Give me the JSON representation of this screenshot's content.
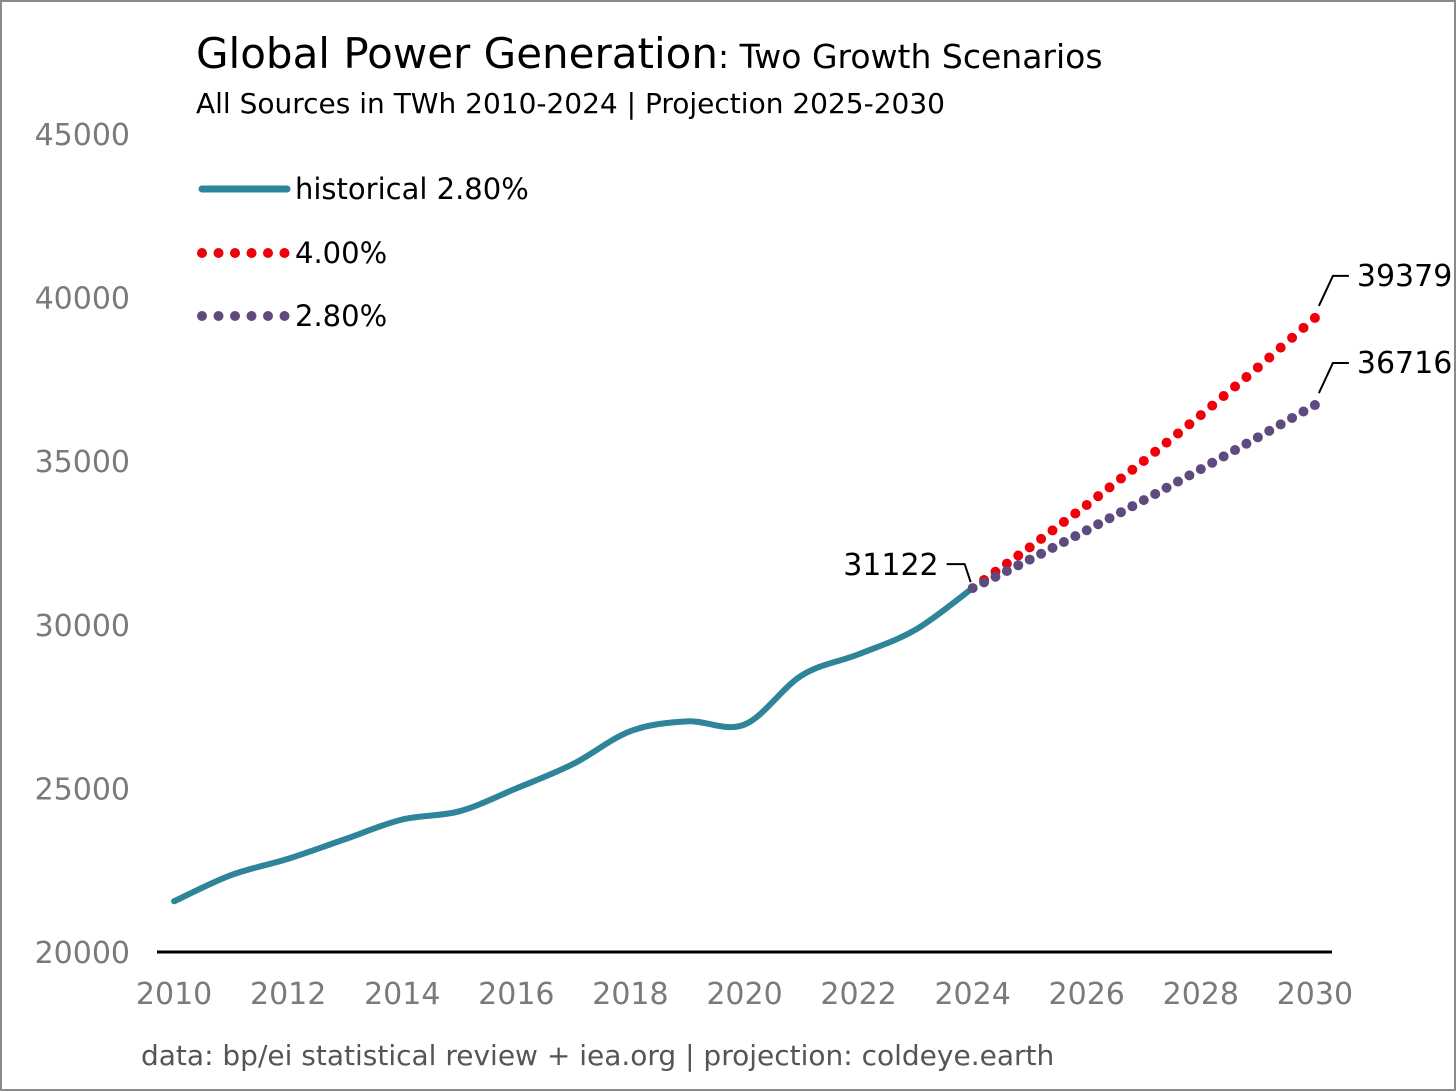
{
  "chart_data": {
    "type": "line",
    "title": "Global Power Generation",
    "title_suffix": ": Two Growth Scenarios",
    "subtitle": "All Sources in TWh 2010-2024 | Projection 2025-2030",
    "source": "data: bp/ei statistical review + iea.org | projection: coldeye.earth",
    "xlabel": "",
    "ylabel": "",
    "xlim": [
      2009.7,
      2030.3
    ],
    "ylim": [
      20000,
      45000
    ],
    "x_ticks": [
      "2010",
      "2012",
      "2014",
      "2016",
      "2018",
      "2020",
      "2022",
      "2024",
      "2026",
      "2028",
      "2030"
    ],
    "y_ticks": [
      "20000",
      "25000",
      "30000",
      "35000",
      "40000",
      "45000"
    ],
    "grid": false,
    "legend_position": "top-left",
    "series": [
      {
        "name": "historical 2.80%",
        "style": "solid",
        "color": "#2e8599",
        "x": [
          2010,
          2011,
          2012,
          2013,
          2014,
          2015,
          2016,
          2017,
          2018,
          2019,
          2020,
          2021,
          2022,
          2023,
          2024
        ],
        "y": [
          21550,
          22350,
          22850,
          23450,
          24050,
          24300,
          25000,
          25750,
          26750,
          27050,
          26950,
          28450,
          29100,
          29850,
          31122
        ]
      },
      {
        "name": "4.00%",
        "style": "dotted",
        "color": "#f0000a",
        "x": [
          2024,
          2025,
          2026,
          2027,
          2028,
          2029,
          2030
        ],
        "y": [
          31122,
          32367,
          33662,
          35008,
          36408,
          37865,
          39379
        ]
      },
      {
        "name": "2.80%",
        "style": "dotted",
        "color": "#5e4a7e",
        "x": [
          2024,
          2025,
          2026,
          2027,
          2028,
          2029,
          2030
        ],
        "y": [
          31122,
          31993,
          32889,
          33810,
          34757,
          35730,
          36716
        ]
      }
    ],
    "annotations": [
      "31122",
      "39379",
      "36716"
    ]
  }
}
